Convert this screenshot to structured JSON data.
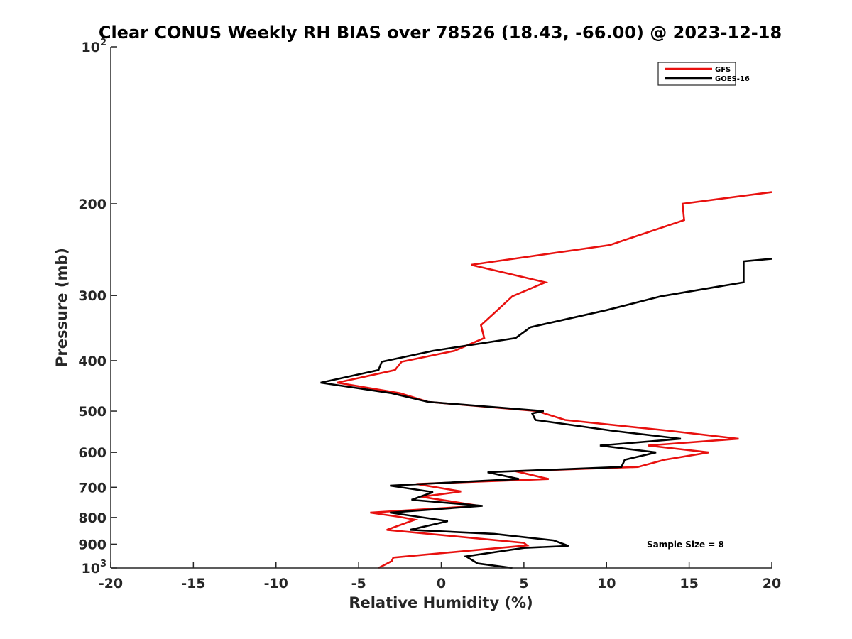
{
  "chart_data": {
    "type": "line",
    "title": "Clear CONUS Weekly RH BIAS over 78526 (18.43, -66.00) @ 2023-12-18",
    "xlabel": "Relative Humidity (%)",
    "ylabel": "Pressure (mb)",
    "xlim": [
      -20,
      20
    ],
    "ylim": [
      100,
      1000
    ],
    "y_scale": "log",
    "y_direction": "reversed",
    "grid": false,
    "legend_position": "top-right",
    "x_ticks": [
      "-20",
      "-15",
      "-10",
      "-5",
      "0",
      "5",
      "10",
      "15",
      "20"
    ],
    "y_ticks": [
      {
        "value": 100,
        "base": "10",
        "exp": "2"
      },
      {
        "value": 200,
        "label": "200"
      },
      {
        "value": 300,
        "label": "300"
      },
      {
        "value": 400,
        "label": "400"
      },
      {
        "value": 500,
        "label": "500"
      },
      {
        "value": 600,
        "label": "600"
      },
      {
        "value": 700,
        "label": "700"
      },
      {
        "value": 800,
        "label": "800"
      },
      {
        "value": 900,
        "label": "900"
      },
      {
        "value": 1000,
        "base": "10",
        "exp": "3"
      }
    ],
    "annotation": "Sample Size = 8",
    "series": [
      {
        "name": "GFS",
        "color": "#e8110f",
        "points": [
          {
            "x": 20.0,
            "y": 190
          },
          {
            "x": 14.6,
            "y": 200
          },
          {
            "x": 14.7,
            "y": 215
          },
          {
            "x": 10.2,
            "y": 240
          },
          {
            "x": 1.8,
            "y": 262
          },
          {
            "x": 6.3,
            "y": 283
          },
          {
            "x": 4.3,
            "y": 301
          },
          {
            "x": 3.4,
            "y": 320
          },
          {
            "x": 2.4,
            "y": 342
          },
          {
            "x": 2.6,
            "y": 362
          },
          {
            "x": 0.8,
            "y": 383
          },
          {
            "x": -2.4,
            "y": 402
          },
          {
            "x": -2.8,
            "y": 417
          },
          {
            "x": -6.3,
            "y": 441
          },
          {
            "x": -2.5,
            "y": 462
          },
          {
            "x": -0.8,
            "y": 480
          },
          {
            "x": 5.8,
            "y": 500
          },
          {
            "x": 7.5,
            "y": 520
          },
          {
            "x": 13.7,
            "y": 545
          },
          {
            "x": 18.0,
            "y": 565
          },
          {
            "x": 12.5,
            "y": 582
          },
          {
            "x": 16.2,
            "y": 600
          },
          {
            "x": 13.5,
            "y": 620
          },
          {
            "x": 11.9,
            "y": 640
          },
          {
            "x": 4.5,
            "y": 652
          },
          {
            "x": 6.5,
            "y": 675
          },
          {
            "x": -1.5,
            "y": 690
          },
          {
            "x": 1.2,
            "y": 713
          },
          {
            "x": -1.2,
            "y": 730
          },
          {
            "x": 2.3,
            "y": 760
          },
          {
            "x": -4.3,
            "y": 783
          },
          {
            "x": -2.5,
            "y": 798
          },
          {
            "x": -1.6,
            "y": 808
          },
          {
            "x": -3.3,
            "y": 845
          },
          {
            "x": 5.0,
            "y": 895
          },
          {
            "x": 5.2,
            "y": 905
          },
          {
            "x": -2.9,
            "y": 955
          },
          {
            "x": -3.0,
            "y": 970
          },
          {
            "x": -3.8,
            "y": 1000
          }
        ]
      },
      {
        "name": "GOES-16",
        "color": "#000000",
        "points": [
          {
            "x": 20.0,
            "y": 255
          },
          {
            "x": 18.3,
            "y": 258
          },
          {
            "x": 18.3,
            "y": 283
          },
          {
            "x": 13.3,
            "y": 301
          },
          {
            "x": 10.0,
            "y": 320
          },
          {
            "x": 5.4,
            "y": 345
          },
          {
            "x": 4.5,
            "y": 362
          },
          {
            "x": -0.5,
            "y": 383
          },
          {
            "x": -3.6,
            "y": 402
          },
          {
            "x": -3.8,
            "y": 417
          },
          {
            "x": -7.3,
            "y": 441
          },
          {
            "x": -3.0,
            "y": 462
          },
          {
            "x": -0.8,
            "y": 480
          },
          {
            "x": 6.2,
            "y": 500
          },
          {
            "x": 5.5,
            "y": 505
          },
          {
            "x": 5.7,
            "y": 520
          },
          {
            "x": 10.3,
            "y": 545
          },
          {
            "x": 14.5,
            "y": 565
          },
          {
            "x": 9.6,
            "y": 582
          },
          {
            "x": 13.0,
            "y": 600
          },
          {
            "x": 11.1,
            "y": 620
          },
          {
            "x": 10.9,
            "y": 640
          },
          {
            "x": 2.8,
            "y": 655
          },
          {
            "x": 4.7,
            "y": 675
          },
          {
            "x": -3.1,
            "y": 695
          },
          {
            "x": -0.5,
            "y": 715
          },
          {
            "x": -1.8,
            "y": 740
          },
          {
            "x": 2.5,
            "y": 760
          },
          {
            "x": -3.1,
            "y": 783
          },
          {
            "x": 0.4,
            "y": 813
          },
          {
            "x": -1.9,
            "y": 845
          },
          {
            "x": 3.2,
            "y": 860
          },
          {
            "x": 6.8,
            "y": 885
          },
          {
            "x": 7.7,
            "y": 907
          },
          {
            "x": 5.0,
            "y": 915
          },
          {
            "x": 1.5,
            "y": 950
          },
          {
            "x": 2.2,
            "y": 980
          },
          {
            "x": 4.3,
            "y": 1000
          }
        ]
      }
    ]
  }
}
